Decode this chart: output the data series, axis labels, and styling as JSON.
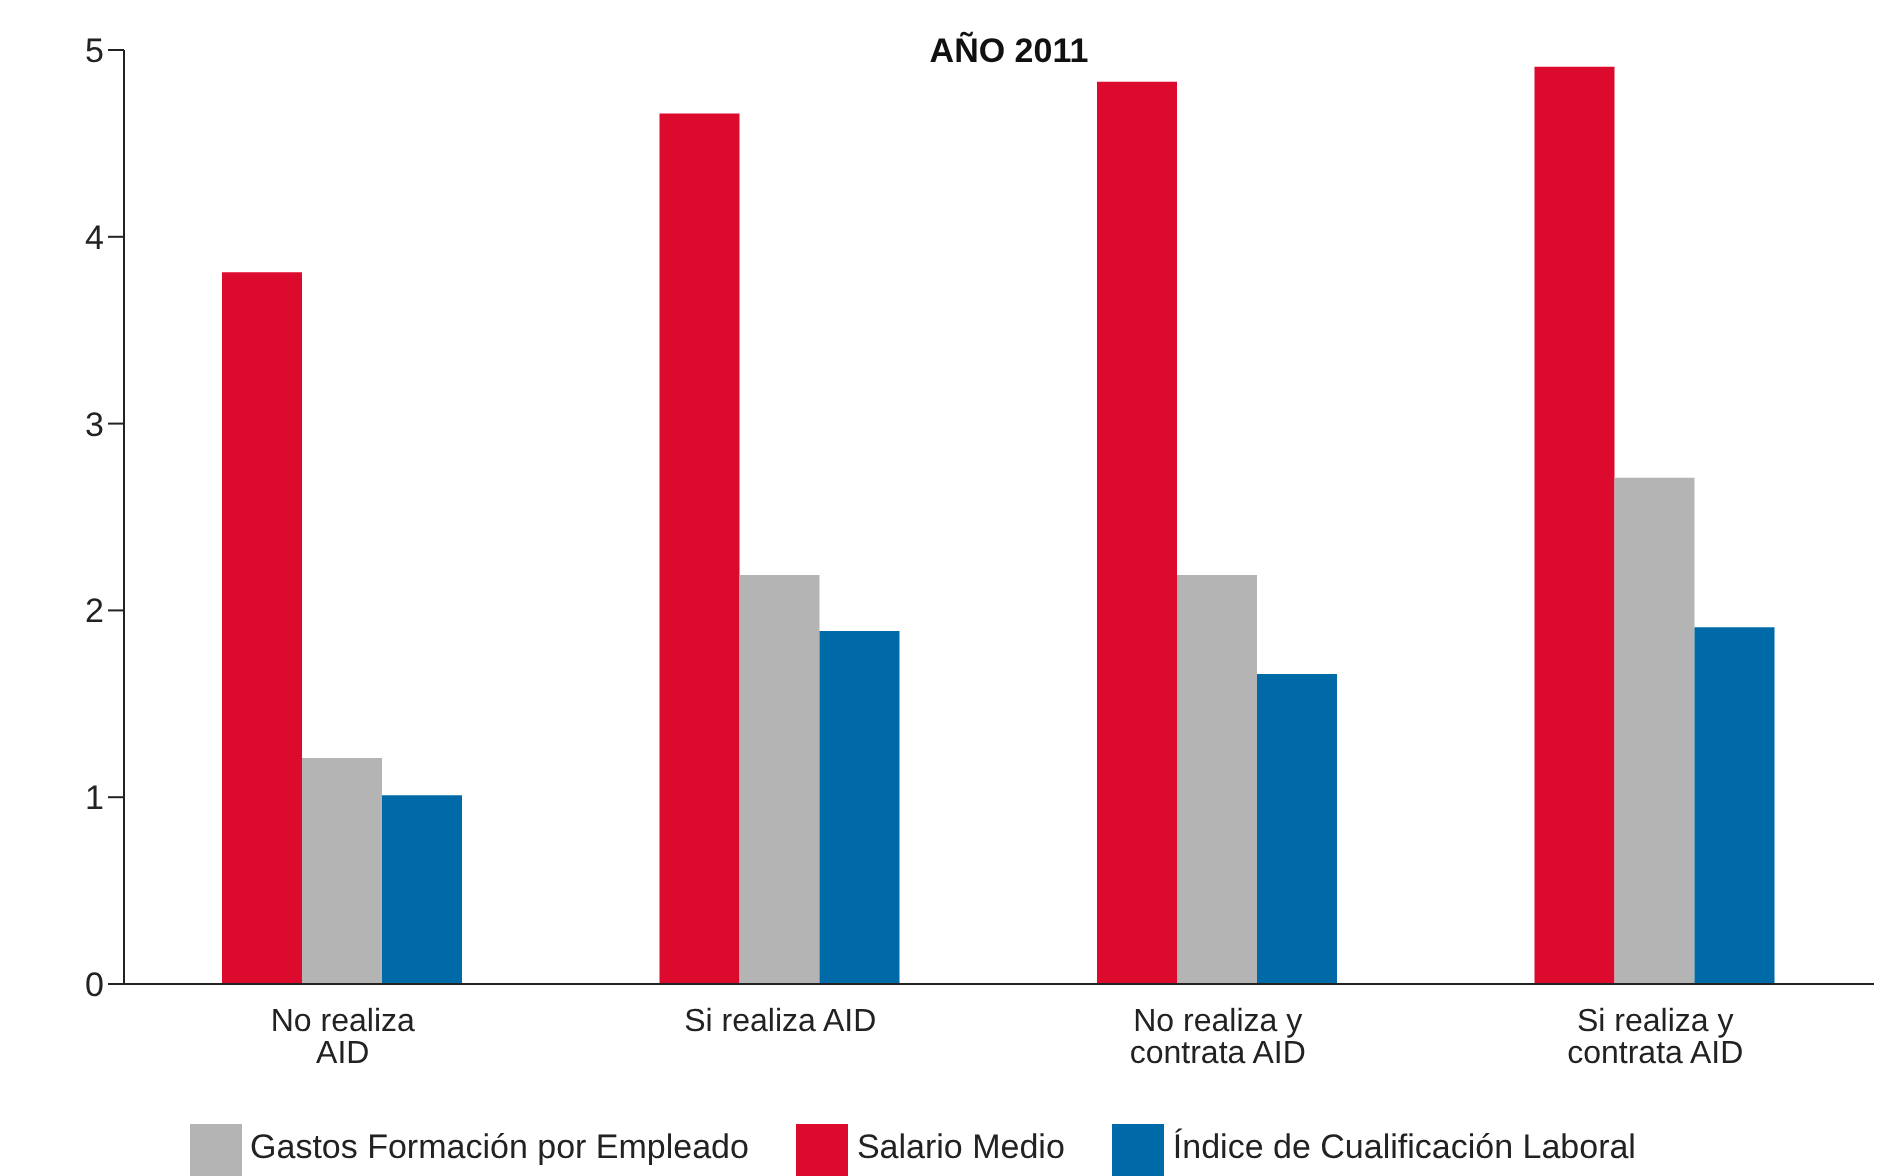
{
  "chart_data": {
    "type": "bar",
    "title": "AÑO 2011",
    "categories": [
      "No realiza AID",
      "Si realiza AID",
      "No realiza y contrata AID",
      "Si realiza y contrata AID"
    ],
    "series": [
      {
        "name": "Salario Medio",
        "color": "#dc0a2d",
        "values": [
          3.81,
          4.66,
          4.83,
          4.91
        ]
      },
      {
        "name": "Gastos Formación por Empleado",
        "color": "#b4b4b4",
        "values": [
          1.21,
          2.19,
          2.19,
          2.71
        ]
      },
      {
        "name": "Índice de Cualificación Laboral",
        "color": "#0069a8",
        "values": [
          1.01,
          1.89,
          1.66,
          1.91
        ]
      }
    ],
    "ylim": [
      0,
      5
    ],
    "yticks": [
      0,
      1,
      2,
      3,
      4,
      5
    ],
    "grid": false,
    "legend": "bottom"
  }
}
